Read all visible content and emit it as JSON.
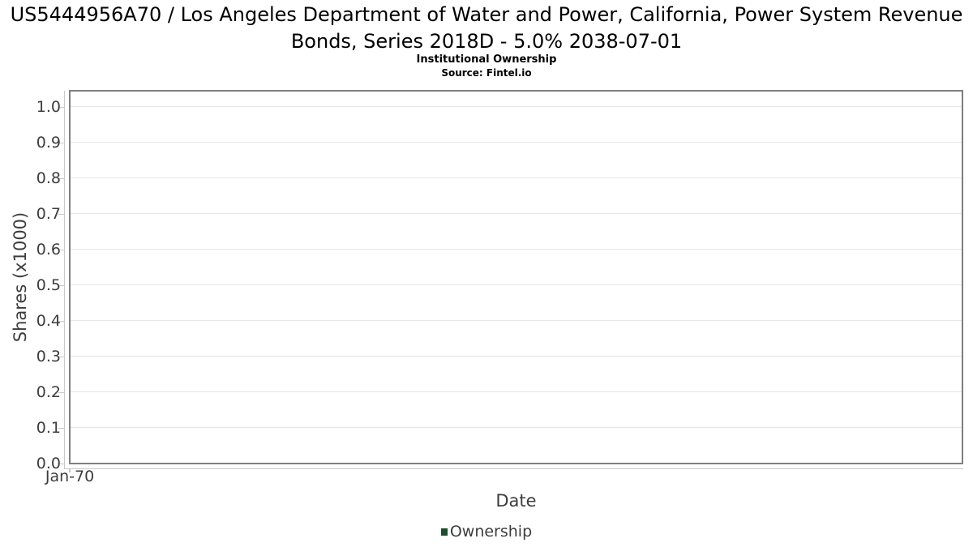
{
  "chart_data": {
    "type": "line",
    "title": "US5444956A70 / Los Angeles Department of Water and Power, California, Power System Revenue Bonds, Series 2018D - 5.0% 2038-07-01",
    "subtitle": "Institutional Ownership",
    "source": "Source: Fintel.io",
    "xlabel": "Date",
    "ylabel": "Shares (x1000)",
    "x_ticks": [
      "Jan-70"
    ],
    "y_ticks": [
      "0.0",
      "0.1",
      "0.2",
      "0.3",
      "0.4",
      "0.5",
      "0.6",
      "0.7",
      "0.8",
      "0.9",
      "1.0"
    ],
    "ylim": [
      0,
      1.0455
    ],
    "grid": true,
    "legend_position": "bottom-center",
    "series": [
      {
        "name": "Ownership",
        "color": "#1d4d2b",
        "x": [],
        "values": []
      }
    ],
    "colors": {
      "background": "#ffffff",
      "frame": "#7f7f7f",
      "gridline": "#e6e6e6",
      "axis_line": "#c9c9c9",
      "text": "#3d3d3d",
      "title_text": "#000000",
      "legend_marker": "#1d4d2b"
    }
  }
}
